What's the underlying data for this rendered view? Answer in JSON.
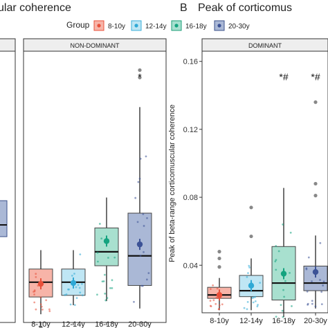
{
  "panel_titles": {
    "a_fragment": "ular coherence",
    "b_letter": "B",
    "b_fragment": "Peak of corticomus"
  },
  "legend": {
    "title": "Group",
    "items": [
      {
        "label": "8-10y",
        "fill": "#f7b4a8",
        "stroke": "#e8503a",
        "dot": "#e8503a"
      },
      {
        "label": "12-14y",
        "fill": "#bfe6f4",
        "stroke": "#3aaed8",
        "dot": "#2fa9d6"
      },
      {
        "label": "16-18y",
        "fill": "#a8e0cf",
        "stroke": "#1b9e77",
        "dot": "#14a37f"
      },
      {
        "label": "20-30y",
        "fill": "#aab8d6",
        "stroke": "#3a4f8a",
        "dot": "#3c5296"
      }
    ]
  },
  "y_axis_label": "Peak of beta-range corticomuscular coherence",
  "chart_data": [
    {
      "type": "box",
      "panel": "A",
      "facet_label": "NON-DOMINANT",
      "categories": [
        "8-10y",
        "12-14y",
        "16-18y",
        "20-30y"
      ],
      "ylim": [
        0,
        0.165
      ],
      "boxes": [
        {
          "q1": 0.0155,
          "median": 0.0245,
          "q3": 0.0325,
          "whisker_low": 0.005,
          "whisker_high": 0.044,
          "mean": 0.0235,
          "outliers": [
            -0.003
          ]
        },
        {
          "q1": 0.0165,
          "median": 0.0245,
          "q3": 0.0325,
          "whisker_low": 0.0105,
          "whisker_high": 0.044,
          "mean": 0.024,
          "outliers": []
        },
        {
          "q1": 0.0345,
          "median": 0.043,
          "q3": 0.0575,
          "whisker_low": 0.013,
          "whisker_high": 0.076,
          "mean": 0.0495,
          "outliers": []
        },
        {
          "q1": 0.0225,
          "median": 0.0405,
          "q3": 0.0665,
          "whisker_low": 0.0085,
          "whisker_high": 0.131,
          "mean": 0.0475,
          "outliers": [
            0.1535,
            0.149
          ]
        }
      ],
      "annotations": [
        {
          "category": "20-30y",
          "text": "*"
        }
      ]
    },
    {
      "type": "box",
      "panel": "B",
      "facet_label": "DOMINANT",
      "categories": [
        "8-10y",
        "12-14y",
        "16-18y",
        "20-30y"
      ],
      "yticks": [
        0.04,
        0.08,
        0.12,
        0.16
      ],
      "ylim": [
        0.012,
        0.166
      ],
      "boxes": [
        {
          "q1": 0.0205,
          "median": 0.0225,
          "q3": 0.027,
          "whisker_low": 0.0135,
          "whisker_high": 0.0325,
          "mean": 0.0225,
          "outliers": [
            0.048,
            0.044,
            0.039
          ]
        },
        {
          "q1": 0.0215,
          "median": 0.025,
          "q3": 0.034,
          "whisker_low": 0.0135,
          "whisker_high": 0.044,
          "mean": 0.028,
          "outliers": [
            0.074,
            0.057
          ]
        },
        {
          "q1": 0.0195,
          "median": 0.0295,
          "q3": 0.051,
          "whisker_low": 0.0095,
          "whisker_high": 0.0855,
          "mean": 0.035,
          "outliers": []
        },
        {
          "q1": 0.025,
          "median": 0.0295,
          "q3": 0.0395,
          "whisker_low": 0.0145,
          "whisker_high": 0.0575,
          "mean": 0.036,
          "outliers": [
            0.136,
            0.088,
            0.081
          ]
        }
      ],
      "annotations": [
        {
          "category": "16-18y",
          "text": "*#"
        },
        {
          "category": "20-30y",
          "text": "*#"
        }
      ]
    }
  ]
}
